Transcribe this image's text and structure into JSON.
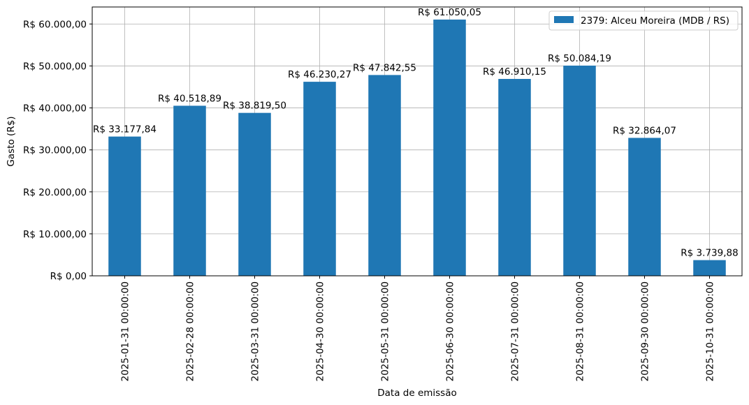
{
  "chart_data": {
    "type": "bar",
    "categories": [
      "2025-01-31 00:00:00",
      "2025-02-28 00:00:00",
      "2025-03-31 00:00:00",
      "2025-04-30 00:00:00",
      "2025-05-31 00:00:00",
      "2025-06-30 00:00:00",
      "2025-07-31 00:00:00",
      "2025-08-31 00:00:00",
      "2025-09-30 00:00:00",
      "2025-10-31 00:00:00"
    ],
    "series": [
      {
        "name": "2379: Alceu Moreira (MDB / RS)",
        "color": "#1f77b4",
        "values": [
          33177.84,
          40518.89,
          38819.5,
          46230.27,
          47842.55,
          61050.05,
          46910.15,
          50084.19,
          32864.07,
          3739.88
        ],
        "data_labels": [
          "R$ 33.177,84",
          "R$ 40.518,89",
          "R$ 38.819,50",
          "R$ 46.230,27",
          "R$ 47.842,55",
          "R$ 61.050,05",
          "R$ 46.910,15",
          "R$ 50.084,19",
          "R$ 32.864,07",
          "R$ 3.739,88"
        ]
      }
    ],
    "xlabel": "Data de emissão",
    "ylabel": "Gasto (R$)",
    "ylim": [
      0,
      64050
    ],
    "yticks": [
      0,
      10000,
      20000,
      30000,
      40000,
      50000,
      60000
    ],
    "ytick_labels": [
      "R$ 0,00",
      "R$ 10.000,00",
      "R$ 20.000,00",
      "R$ 30.000,00",
      "R$ 40.000,00",
      "R$ 50.000,00",
      "R$ 60.000,00"
    ],
    "grid": true,
    "legend_position": "top-right"
  }
}
